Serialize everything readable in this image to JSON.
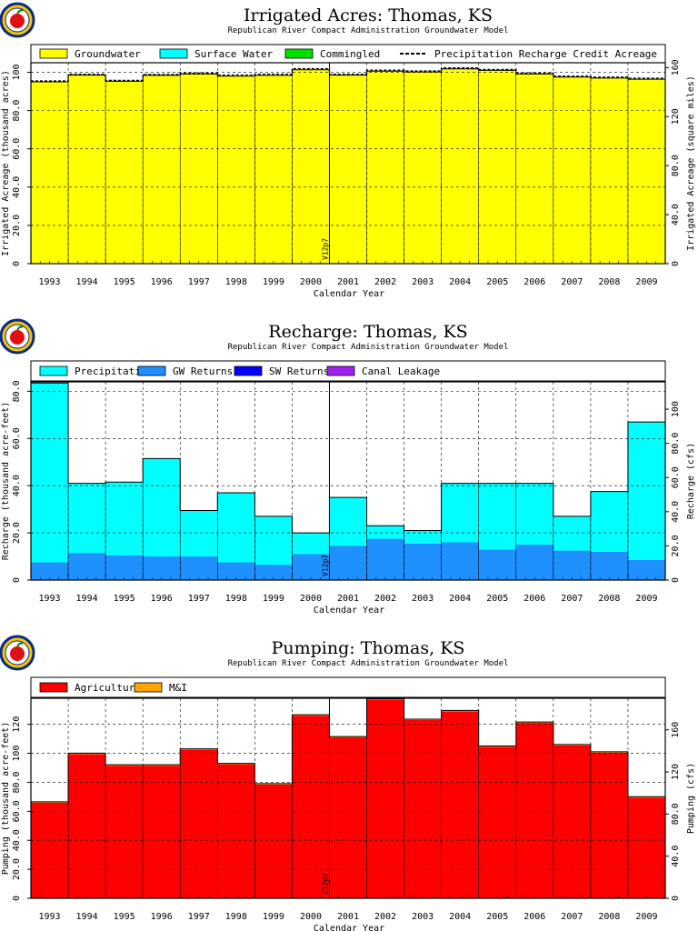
{
  "chart_data": [
    {
      "type": "area",
      "title": "Irrigated Acres: Thomas, KS",
      "subtitle": "Republican River Compact Administration Groundwater Model",
      "xlabel": "Calendar Year",
      "ylabel": "Irrigated Acreage (thousand acres)",
      "y2label": "Irrigated Acreage (square miles)",
      "categories": [
        "1993",
        "1994",
        "1995",
        "1996",
        "1997",
        "1998",
        "1999",
        "2000",
        "2001",
        "2002",
        "2003",
        "2004",
        "2005",
        "2006",
        "2007",
        "2008",
        "2009"
      ],
      "ylim": [
        0,
        105
      ],
      "yticks": [
        "0",
        "20.0",
        "40.0",
        "60.0",
        "80.0",
        "100"
      ],
      "y2lim": [
        0,
        164
      ],
      "y2ticks": [
        "0",
        "40.0",
        "80.0",
        "120",
        "160"
      ],
      "grid": true,
      "legend_position": "top",
      "legend": [
        "Groundwater",
        "Surface Water",
        "Commingled",
        "Precipitation Recharge Credit Acreage"
      ],
      "series": [
        {
          "name": "Groundwater",
          "color": "#ffff00",
          "values": [
            95.0,
            98.5,
            95.3,
            98.4,
            99.1,
            98.0,
            98.4,
            101.3,
            98.5,
            100.6,
            100.2,
            101.8,
            101.0,
            99.1,
            97.5,
            97.0,
            96.4
          ]
        },
        {
          "name": "Surface Water",
          "color": "#00ffff",
          "values": [
            0,
            0,
            0,
            0,
            0,
            0,
            0,
            0,
            0,
            0,
            0,
            0,
            0,
            0,
            0,
            0,
            0
          ]
        },
        {
          "name": "Commingled",
          "color": "#00e000",
          "values": [
            0,
            0,
            0,
            0,
            0,
            0,
            0,
            0,
            0,
            0,
            0,
            0,
            0,
            0,
            0,
            0,
            0
          ]
        }
      ],
      "credit_line": [
        95.5,
        99.0,
        95.8,
        98.9,
        99.6,
        98.6,
        99.0,
        101.9,
        99.0,
        101.1,
        100.7,
        102.3,
        101.5,
        99.6,
        98.0,
        97.5,
        96.9
      ],
      "annotation": "V12p7"
    },
    {
      "type": "area",
      "title": "Recharge: Thomas, KS",
      "subtitle": "Republican River Compact Administration Groundwater Model",
      "xlabel": "Calendar Year",
      "ylabel": "Recharge (thousand acre-feet)",
      "y2label": "Recharge (cfs)",
      "categories": [
        "1993",
        "1994",
        "1995",
        "1996",
        "1997",
        "1998",
        "1999",
        "2000",
        "2001",
        "2002",
        "2003",
        "2004",
        "2005",
        "2006",
        "2007",
        "2008",
        "2009"
      ],
      "ylim": [
        0,
        84
      ],
      "yticks": [
        "0",
        "20.0",
        "40.0",
        "60.0",
        "80.0"
      ],
      "y2lim": [
        0,
        116
      ],
      "y2ticks": [
        "0",
        "20.0",
        "40.0",
        "60.0",
        "80.0",
        "100"
      ],
      "grid": true,
      "legend_position": "top",
      "legend": [
        "Precipitation",
        "GW Returns",
        "SW Returns",
        "Canal Leakage"
      ],
      "series": [
        {
          "name": "GW Returns",
          "color": "#1e90ff",
          "values": [
            7.5,
            11.5,
            10.5,
            10.0,
            10.0,
            7.5,
            6.5,
            11.0,
            14.5,
            17.5,
            15.5,
            16.0,
            13.0,
            15.0,
            12.5,
            12.0,
            8.5
          ]
        },
        {
          "name": "SW Returns",
          "color": "#0000ff",
          "values": [
            0,
            0,
            0,
            0,
            0,
            0,
            0,
            0,
            0,
            0,
            0,
            0,
            0,
            0,
            0,
            0,
            0
          ]
        },
        {
          "name": "Canal Leakage",
          "color": "#a020f0",
          "values": [
            0,
            0,
            0,
            0,
            0,
            0,
            0,
            0,
            0,
            0,
            0,
            0,
            0,
            0,
            0,
            0,
            0
          ]
        },
        {
          "name": "Precipitation",
          "color": "#00ffff",
          "values": [
            76.0,
            29.5,
            31.0,
            41.5,
            19.5,
            29.5,
            20.5,
            9.0,
            20.5,
            5.5,
            5.5,
            25.0,
            28.0,
            26.0,
            14.5,
            25.5,
            58.5
          ]
        }
      ],
      "annotation": "V12p7"
    },
    {
      "type": "area",
      "title": "Pumping: Thomas, KS",
      "subtitle": "Republican River Compact Administration Groundwater Model",
      "xlabel": "Calendar Year",
      "ylabel": "Pumping (thousand acre-feet)",
      "y2label": "Pumping (cfs)",
      "categories": [
        "1993",
        "1994",
        "1995",
        "1996",
        "1997",
        "1998",
        "1999",
        "2000",
        "2001",
        "2002",
        "2003",
        "2004",
        "2005",
        "2006",
        "2007",
        "2008",
        "2009"
      ],
      "ylim": [
        0,
        138
      ],
      "yticks": [
        "0",
        "20.0",
        "40.0",
        "60.0",
        "80.0",
        "100",
        "120"
      ],
      "y2lim": [
        0,
        190
      ],
      "y2ticks": [
        "0",
        "40.0",
        "80.0",
        "120",
        "160"
      ],
      "grid": true,
      "legend_position": "top",
      "legend": [
        "Agricultural",
        "M&I"
      ],
      "series": [
        {
          "name": "Agricultural",
          "color": "#ff0000",
          "values": [
            66.0,
            99.5,
            91.5,
            91.5,
            102.5,
            92.5,
            78.5,
            126.0,
            111.0,
            137.0,
            123.0,
            129.0,
            104.5,
            121.0,
            105.5,
            100.5,
            69.5
          ]
        },
        {
          "name": "M&I",
          "color": "#ffa500",
          "values": [
            0.6,
            0.6,
            0.6,
            0.6,
            0.6,
            0.6,
            0.6,
            0.6,
            0.6,
            0.6,
            0.6,
            0.6,
            0.6,
            0.6,
            0.6,
            0.6,
            0.6
          ]
        }
      ],
      "annotation": "V12p7"
    }
  ]
}
